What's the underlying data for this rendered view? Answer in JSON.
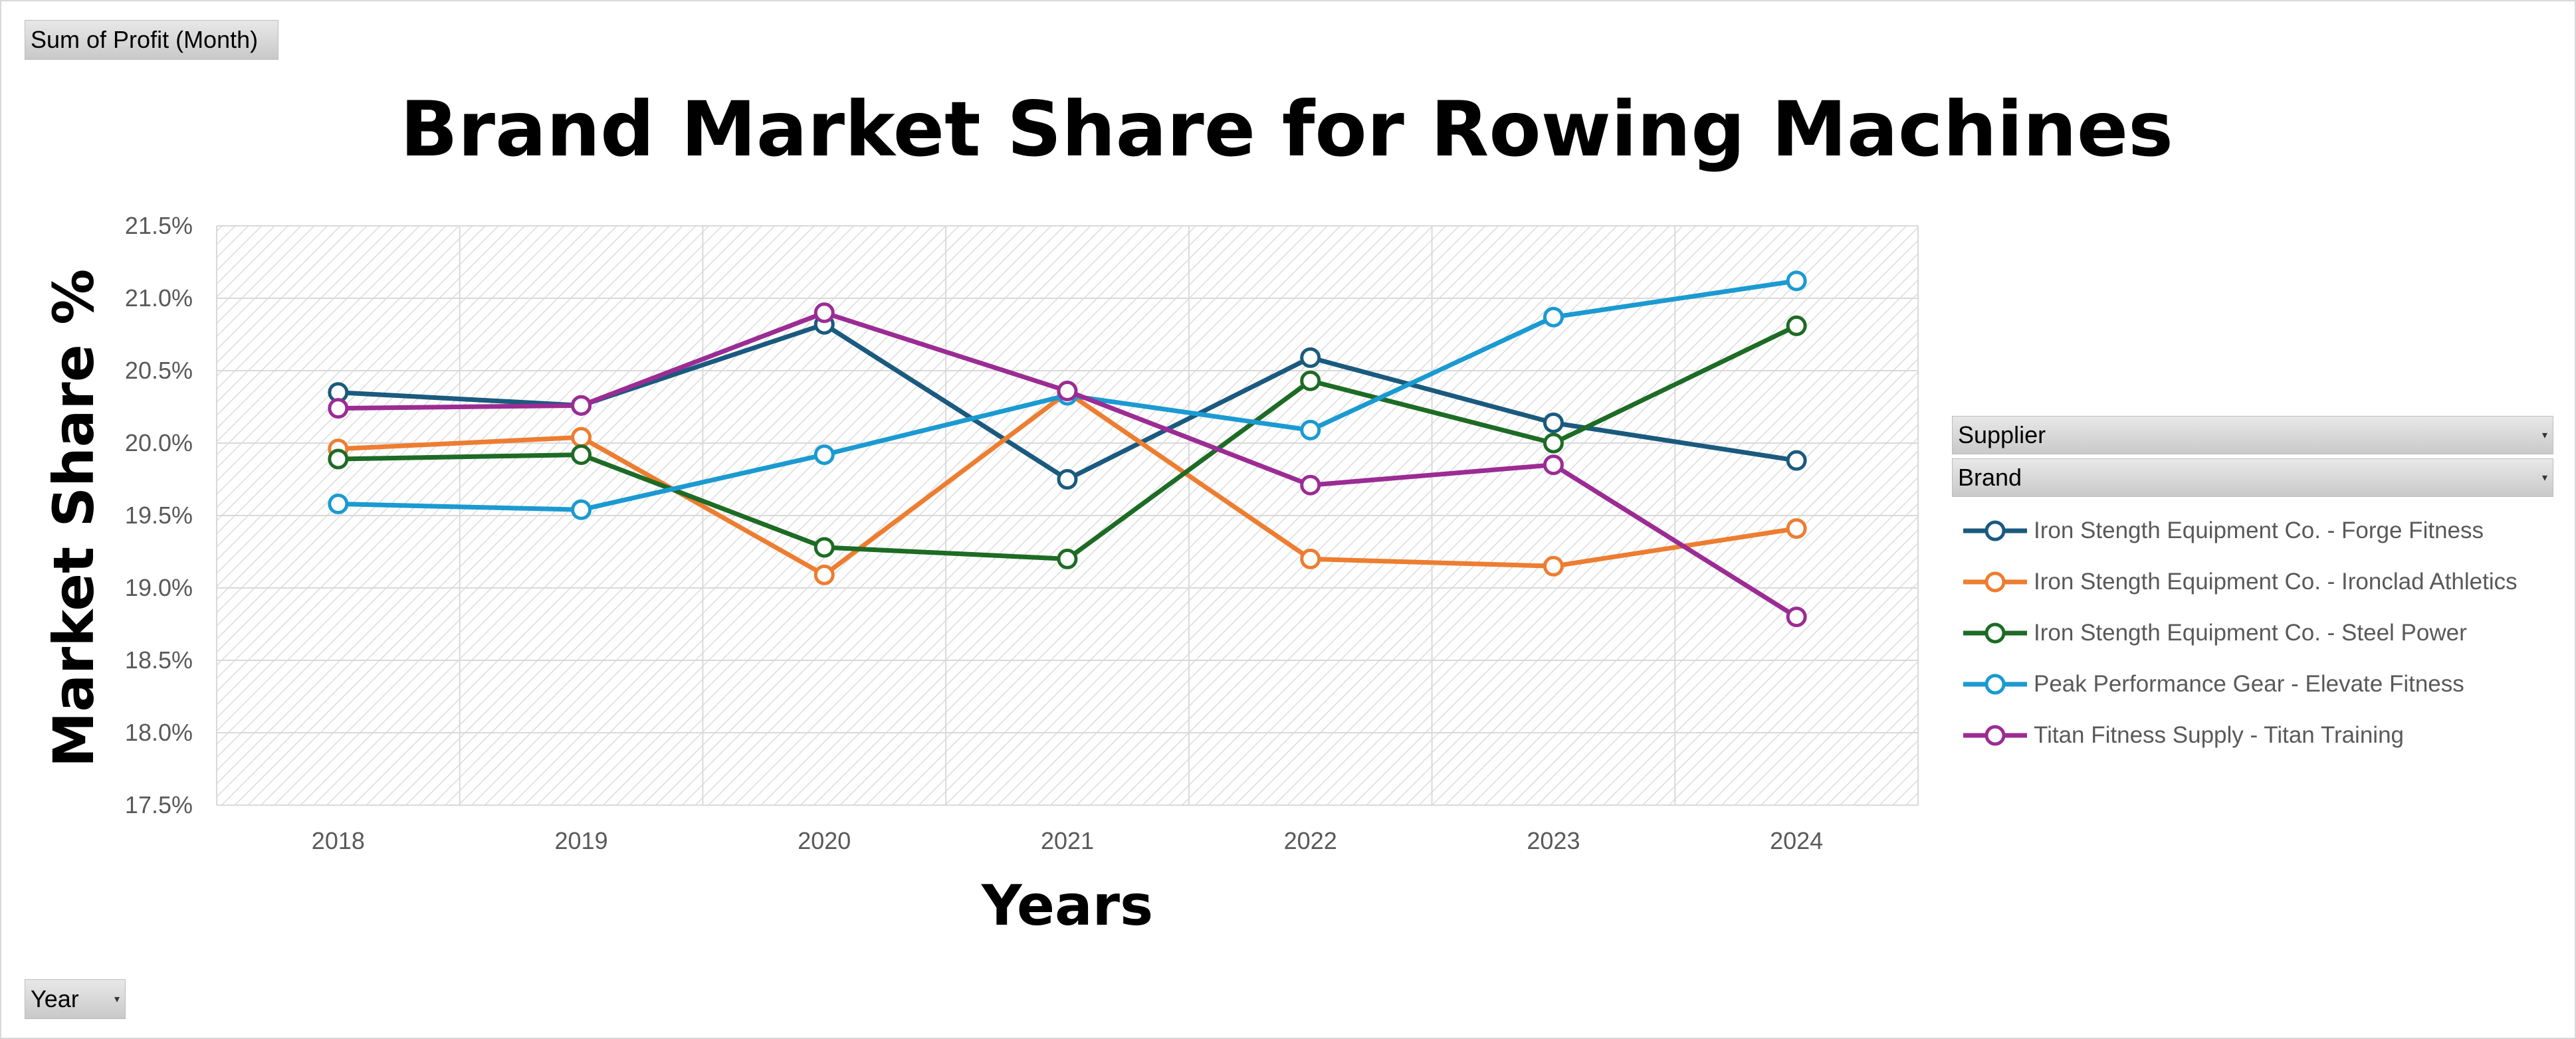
{
  "filters": {
    "values_field": "Sum of Profit (Month)",
    "axis_field": "Year",
    "legend_fields": [
      "Supplier",
      "Brand"
    ]
  },
  "chart_data": {
    "type": "line",
    "title": "Brand Market Share for Rowing Machines",
    "xlabel": "Years",
    "ylabel": "Market Share %",
    "categories": [
      "2018",
      "2019",
      "2020",
      "2021",
      "2022",
      "2023",
      "2024"
    ],
    "ylim": [
      17.5,
      21.5
    ],
    "yticks": [
      "17.5%",
      "18.0%",
      "18.5%",
      "19.0%",
      "19.5%",
      "20.0%",
      "20.5%",
      "21.0%",
      "21.5%"
    ],
    "grid": true,
    "legend_position": "right",
    "series": [
      {
        "name": "Iron Stength Equipment Co. - Forge Fitness",
        "color": "#1a5a7e",
        "values": [
          20.35,
          20.26,
          20.82,
          19.75,
          20.59,
          20.14,
          19.88
        ]
      },
      {
        "name": "Iron Stength Equipment Co. - Ironclad Athletics",
        "color": "#ed7d31",
        "values": [
          19.96,
          20.04,
          19.09,
          20.35,
          19.2,
          19.15,
          19.41
        ]
      },
      {
        "name": "Iron Stength Equipment Co. - Steel Power",
        "color": "#1d6b25",
        "values": [
          19.89,
          19.92,
          19.28,
          19.2,
          20.43,
          20.0,
          20.81
        ]
      },
      {
        "name": "Peak Performance Gear - Elevate Fitness",
        "color": "#1b9ad1",
        "values": [
          19.58,
          19.54,
          19.92,
          20.33,
          20.09,
          20.87,
          21.12
        ]
      },
      {
        "name": "Titan Fitness Supply - Titan Training",
        "color": "#9b2c93",
        "values": [
          20.24,
          20.26,
          20.9,
          20.36,
          19.71,
          19.85,
          18.8
        ]
      }
    ]
  }
}
